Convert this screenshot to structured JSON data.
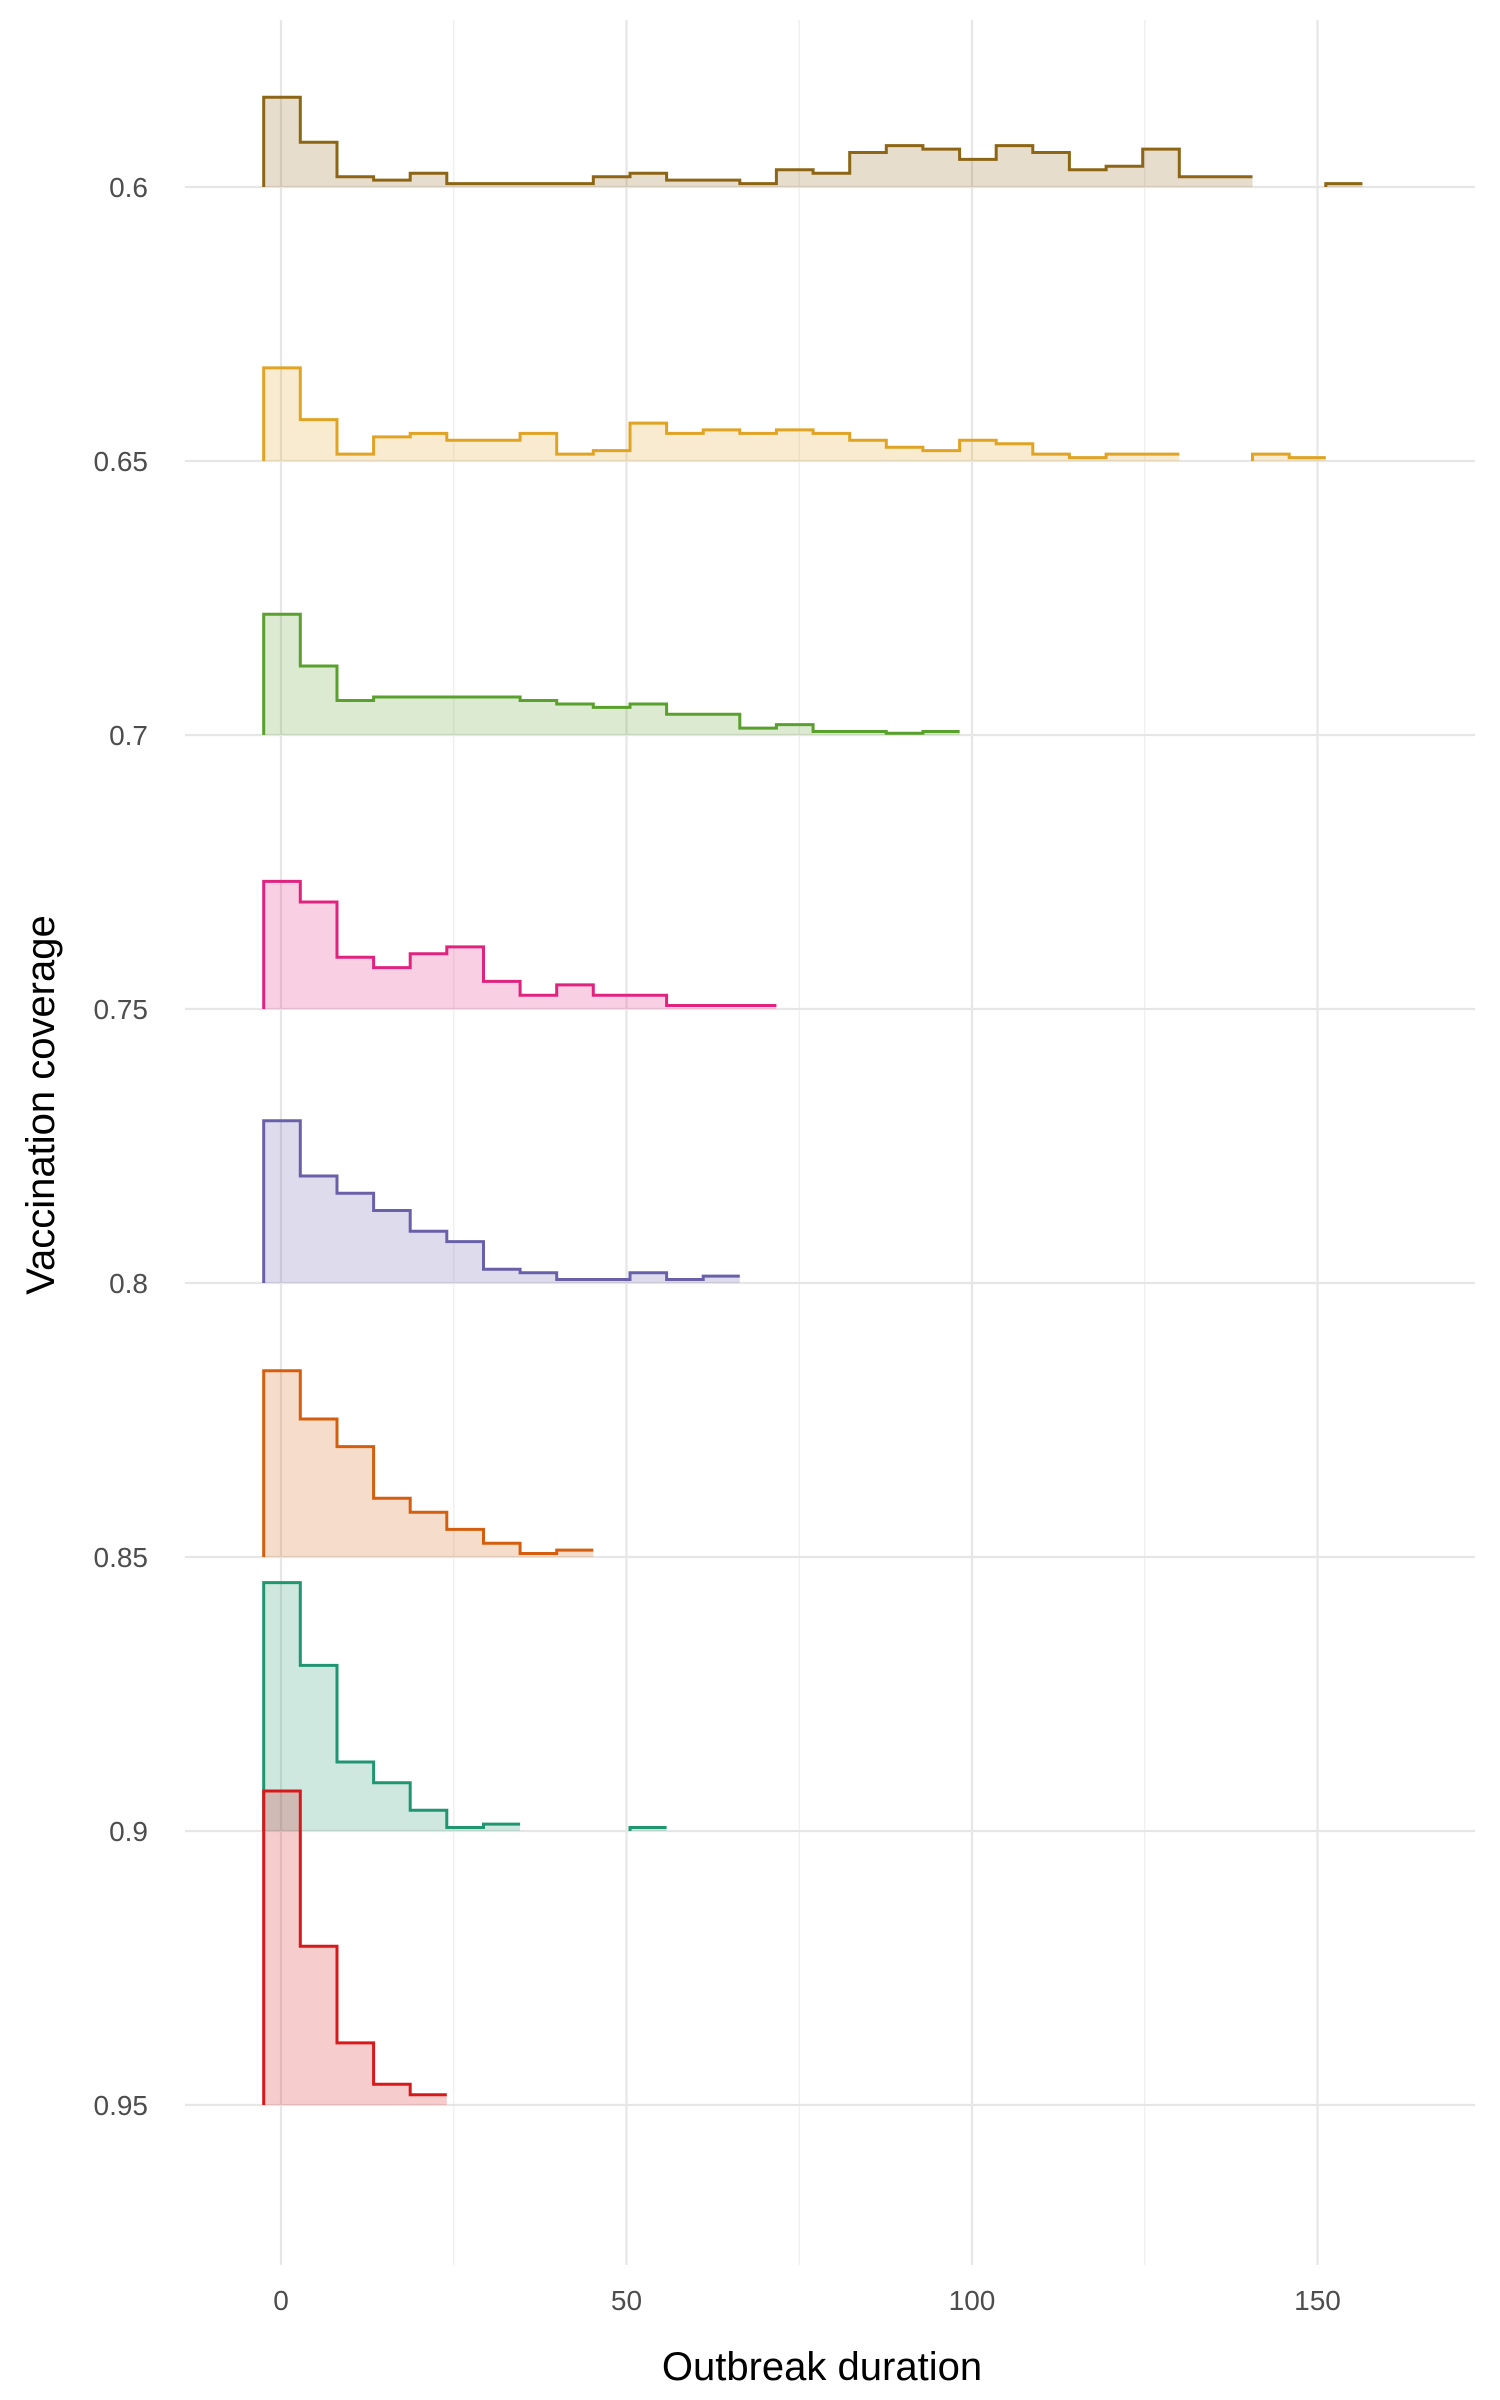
{
  "chart_data": {
    "type": "histogram-ridgeline",
    "xlabel": "Outbreak duration",
    "ylabel": "Vaccination coverage",
    "xlim": [
      -15,
      170
    ],
    "x_ticks": [
      0,
      50,
      100,
      150
    ],
    "x_tick_labels": [
      "0",
      "50",
      "100",
      "150"
    ],
    "y_categories": [
      "0.6",
      "0.65",
      "0.7",
      "0.75",
      "0.8",
      "0.85",
      "0.9",
      "0.95"
    ],
    "bin_start": -2.5,
    "bin_width": 5.3,
    "max_ridge_height": 1.0,
    "grid": true,
    "series": [
      {
        "category": "0.6",
        "color": "#8c6515",
        "heights": [
          0.26,
          0.13,
          0.03,
          0.02,
          0.04,
          0.01,
          0.01,
          0.01,
          0.01,
          0.03,
          0.04,
          0.02,
          0.02,
          0.01,
          0.05,
          0.04,
          0.1,
          0.12,
          0.11,
          0.08,
          0.12,
          0.1,
          0.05,
          0.06,
          0.11,
          0.03,
          0.03,
          null,
          null,
          0.01
        ]
      },
      {
        "category": "0.65",
        "color": "#e0a323",
        "heights": [
          0.27,
          0.12,
          0.02,
          0.07,
          0.08,
          0.06,
          0.06,
          0.08,
          0.02,
          0.03,
          0.11,
          0.08,
          0.09,
          0.08,
          0.09,
          0.08,
          0.06,
          0.04,
          0.03,
          0.06,
          0.05,
          0.02,
          0.01,
          0.02,
          0.02,
          null,
          null,
          0.02,
          0.01
        ]
      },
      {
        "category": "0.7",
        "color": "#5aa02c",
        "heights": [
          0.35,
          0.2,
          0.1,
          0.11,
          0.11,
          0.11,
          0.11,
          0.1,
          0.09,
          0.08,
          0.09,
          0.06,
          0.06,
          0.02,
          0.03,
          0.01,
          0.01,
          0.005,
          0.01
        ]
      },
      {
        "category": "0.75",
        "color": "#e0237e",
        "heights": [
          0.37,
          0.31,
          0.15,
          0.12,
          0.16,
          0.18,
          0.08,
          0.04,
          0.07,
          0.04,
          0.04,
          0.01,
          0.01,
          0.01
        ]
      },
      {
        "category": "0.8",
        "color": "#6a60a9",
        "heights": [
          0.47,
          0.31,
          0.26,
          0.21,
          0.15,
          0.12,
          0.04,
          0.03,
          0.01,
          0.01,
          0.03,
          0.01,
          0.02
        ]
      },
      {
        "category": "0.85",
        "color": "#d55e0e",
        "heights": [
          0.54,
          0.4,
          0.32,
          0.17,
          0.13,
          0.08,
          0.04,
          0.01,
          0.02
        ]
      },
      {
        "category": "0.9",
        "color": "#1f9670",
        "heights": [
          0.72,
          0.48,
          0.2,
          0.14,
          0.06,
          0.01,
          0.02,
          null,
          null,
          null,
          0.01
        ]
      },
      {
        "category": "0.95",
        "color": "#d7191c",
        "heights": [
          0.91,
          0.46,
          0.18,
          0.06,
          0.03
        ]
      }
    ]
  }
}
